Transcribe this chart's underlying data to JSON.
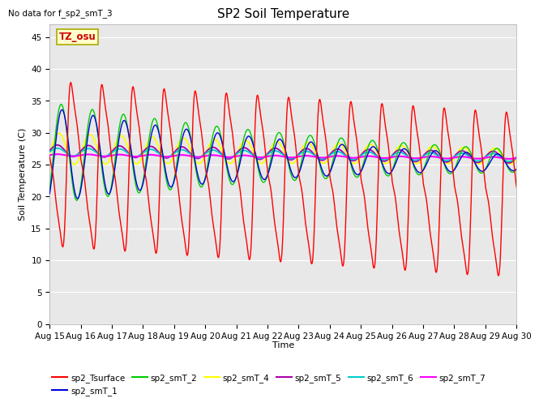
{
  "title": "SP2 Soil Temperature",
  "xlabel": "Time",
  "ylabel": "Soil Temperature (C)",
  "note": "No data for f_sp2_smT_3",
  "tz_label": "TZ_osu",
  "ylim": [
    0,
    47
  ],
  "yticks": [
    0,
    5,
    10,
    15,
    20,
    25,
    30,
    35,
    40,
    45
  ],
  "n_days": 15,
  "xtick_labels": [
    "Aug 15",
    "Aug 16",
    "Aug 17",
    "Aug 18",
    "Aug 19",
    "Aug 20",
    "Aug 21",
    "Aug 22",
    "Aug 23",
    "Aug 24",
    "Aug 25",
    "Aug 26",
    "Aug 27",
    "Aug 28",
    "Aug 29",
    "Aug 30"
  ],
  "series_colors": {
    "sp2_Tsurface": "#ff0000",
    "sp2_smT_1": "#0000dd",
    "sp2_smT_2": "#00cc00",
    "sp2_smT_4": "#ffff00",
    "sp2_smT_5": "#aa00aa",
    "sp2_smT_6": "#00cccc",
    "sp2_smT_7": "#ff00ff"
  },
  "bg_color": "#e8e8e8",
  "fig_bg_color": "#ffffff",
  "grid_color": "#ffffff",
  "linewidth": 1.0
}
